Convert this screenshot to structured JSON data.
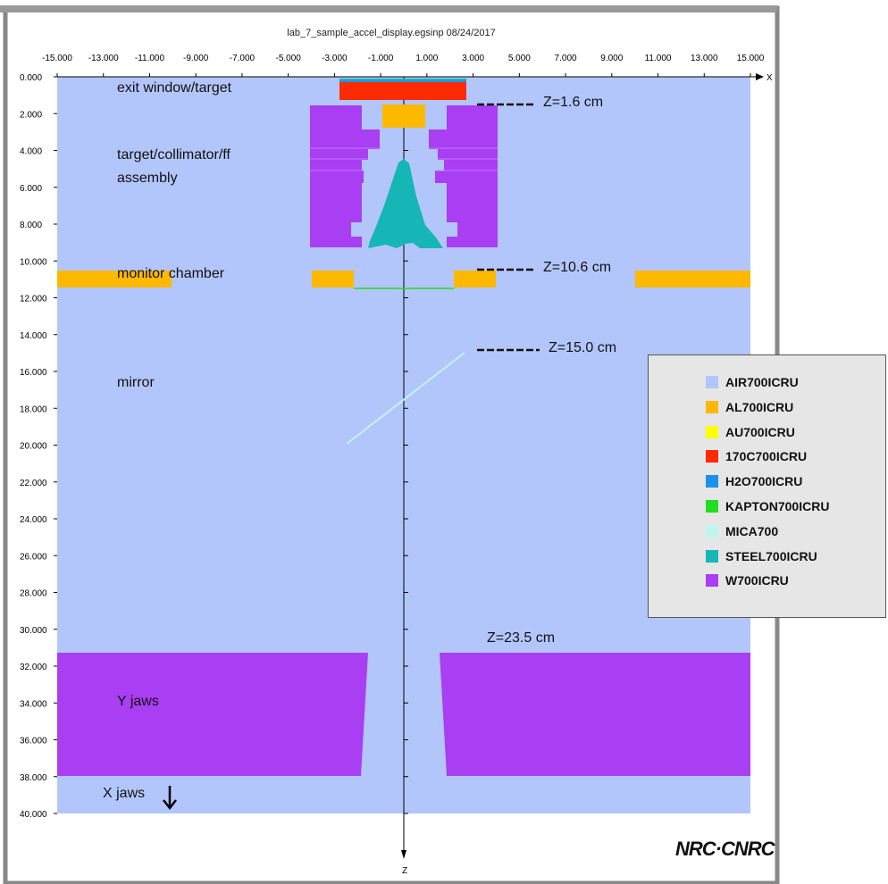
{
  "header": {
    "title": "lab_7_sample_accel_display.egsinp   08/24/2017"
  },
  "axes": {
    "x_label": "X",
    "z_label": "Z",
    "x_ticks": [
      "-15.000",
      "-13.000",
      "-11.000",
      "-9.000",
      "-7.000",
      "-5.000",
      "-3.000",
      "-1.000",
      "1.000",
      "3.000",
      "5.000",
      "7.000",
      "9.000",
      "11.000",
      "13.000",
      "15.000"
    ],
    "z_ticks": [
      "0.000",
      "2.000",
      "4.000",
      "6.000",
      "8.000",
      "10.000",
      "12.000",
      "14.000",
      "16.000",
      "18.000",
      "20.000",
      "22.000",
      "24.000",
      "26.000",
      "28.000",
      "30.000",
      "32.000",
      "34.000",
      "36.000",
      "38.000",
      "40.000"
    ]
  },
  "annotations": {
    "exit_window": "exit window/target",
    "target_line1": "target/collimator/ff",
    "target_line2": "assembly",
    "monitor_chamber": "monitor chamber",
    "mirror": "mirror",
    "y_jaws": "Y jaws",
    "x_jaws": "X jaws",
    "z1": "Z=1.6 cm",
    "z2": "Z=10.6 cm",
    "z3": "Z=15.0 cm",
    "z4": "Z=23.5 cm"
  },
  "legend": {
    "items": [
      {
        "label": "AIR700ICRU",
        "color": "#b3c6fb"
      },
      {
        "label": "AL700ICRU",
        "color": "#fdb900"
      },
      {
        "label": "AU700ICRU",
        "color": "#ffff00"
      },
      {
        "label": "170C700ICRU",
        "color": "#ff2a00"
      },
      {
        "label": "H2O700ICRU",
        "color": "#1e90e8"
      },
      {
        "label": "KAPTON700ICRU",
        "color": "#22dd22"
      },
      {
        "label": "MICA700",
        "color": "#bff5ee"
      },
      {
        "label": "STEEL700ICRU",
        "color": "#17b6b6"
      },
      {
        "label": "W700ICRU",
        "color": "#a93ef2"
      }
    ]
  },
  "logo": {
    "text": "NRC·CNRC"
  }
}
